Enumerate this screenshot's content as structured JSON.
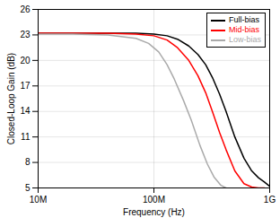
{
  "chart_data": {
    "type": "line",
    "xlabel": "Frequency (Hz)",
    "ylabel": "Closed-Loop Gain (dB)",
    "log": "x",
    "grid": true,
    "legend": "upper right",
    "xlim": [
      10000000,
      1000000000
    ],
    "xticks": [
      {
        "value": 10000000,
        "label": "10M"
      },
      {
        "value": 100000000,
        "label": "100M"
      },
      {
        "value": 1000000000,
        "label": "1G"
      }
    ],
    "ylim": [
      5,
      26
    ],
    "yticks": [
      5,
      8,
      11,
      14,
      17,
      20,
      23,
      26
    ],
    "series": [
      {
        "name": "Full-bias",
        "color": "#000000",
        "x": [
          10000000.0,
          20000000.0,
          40000000.0,
          70000000.0,
          100000000.0,
          130000000.0,
          160000000.0,
          200000000.0,
          240000000.0,
          280000000.0,
          320000000.0,
          370000000.0,
          420000000.0,
          500000000.0,
          600000000.0,
          700000000.0,
          800000000.0,
          900000000.0,
          1000000000.0
        ],
        "values": [
          23.2,
          23.2,
          23.2,
          23.2,
          23.1,
          22.9,
          22.5,
          21.7,
          20.7,
          19.5,
          18.0,
          16.0,
          14.0,
          11.0,
          8.5,
          7.0,
          6.2,
          5.7,
          5.2
        ]
      },
      {
        "name": "Mid-bias",
        "color": "#ff0000",
        "x": [
          10000000.0,
          20000000.0,
          40000000.0,
          70000000.0,
          100000000.0,
          130000000.0,
          160000000.0,
          200000000.0,
          240000000.0,
          280000000.0,
          320000000.0,
          370000000.0,
          420000000.0,
          500000000.0,
          600000000.0,
          700000000.0,
          800000000.0,
          850000000.0,
          900000000.0
        ],
        "values": [
          23.2,
          23.2,
          23.2,
          23.1,
          22.9,
          22.4,
          21.5,
          20.0,
          18.2,
          16.2,
          14.0,
          11.5,
          9.5,
          7.0,
          5.5,
          5.1,
          5.0,
          5.0,
          5.0
        ]
      },
      {
        "name": "Low-bias",
        "color": "#aaaaaa",
        "x": [
          10000000.0,
          20000000.0,
          40000000.0,
          70000000.0,
          90000000.0,
          110000000.0,
          130000000.0,
          150000000.0,
          180000000.0,
          210000000.0,
          250000000.0,
          290000000.0,
          330000000.0,
          380000000.0,
          420000000.0
        ],
        "values": [
          23.1,
          23.1,
          23.0,
          22.6,
          22.0,
          21.0,
          19.5,
          17.8,
          15.3,
          13.0,
          10.0,
          7.8,
          6.3,
          5.3,
          5.0
        ]
      }
    ]
  }
}
